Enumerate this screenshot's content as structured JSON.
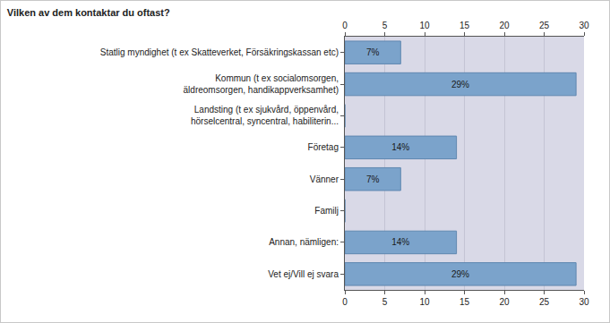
{
  "chart_data": {
    "type": "bar",
    "orientation": "horizontal",
    "title": "Vilken av dem kontaktar du oftast?",
    "categories": [
      "Statlig myndighet (t ex Skatteverket, Försäkringskassan etc)",
      "Kommun (t ex socialomsorgen,\näldreomsorgen, handikappverksamhet)",
      "Landsting (t ex sjukvård, öppenvård,\nhörselcentral, syncentral, habiliterin...",
      "Företag",
      "Vänner",
      "Familj",
      "Annan, nämligen:",
      "Vet ej/Vill ej svara"
    ],
    "values": [
      7,
      29,
      0,
      14,
      7,
      0,
      14,
      29
    ],
    "value_labels": [
      "7%",
      "29%",
      null,
      "14%",
      "7%",
      null,
      "14%",
      "29%"
    ],
    "data_labels": true,
    "color": "#7ba3cb",
    "xlim": [
      0,
      30
    ],
    "xticks": [
      0,
      5,
      10,
      15,
      20,
      25,
      30
    ],
    "grid": true
  }
}
